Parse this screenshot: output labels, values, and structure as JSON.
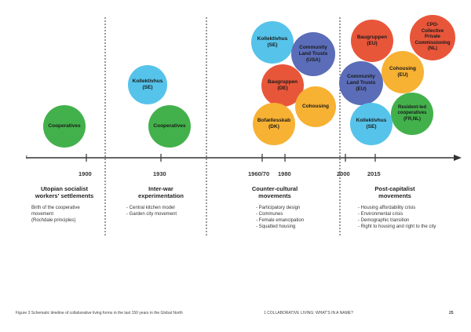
{
  "start_label": "t",
  "axis": {
    "years": [
      "1900",
      "1930",
      "1960/70",
      "1980",
      "2000",
      "2015"
    ]
  },
  "bubbles": {
    "cooperatives_1900": "Cooperatives",
    "kollektivhus_1930": "Kollektivhus\n(SE)",
    "cooperatives_1930": "Cooperatives",
    "kollektivhus_se": "Kollektivhus\n(SE)",
    "clt_usa": "Community\nLand Trusts\n(USA)",
    "baugruppen_de": "Baugruppen\n(DE)",
    "cohousing_1980": "Cohousing",
    "bofaellesskab": "Bofællesskab\n(DK)",
    "baugruppen_eu": "Baugruppen\n(EU)",
    "cpo": "CPO-\nCollective\nPrivate\nCommissioning\n(NL)",
    "clt_eu": "Community\nLand Trusts\n(EU)",
    "cohousing_eu": "Cohousing\n(EU)",
    "resident_led": "Resident-led\ncooperatives\n(FR,NL)",
    "kollektivhus_2015": "Kollektivhus\n(SE)"
  },
  "periods": [
    {
      "title": "Utopian socialist\nworkers' settlements",
      "items": [
        "Birth of the cooperative\nmovement\n(Rochdale principles)"
      ]
    },
    {
      "title": "Inter-war\nexperimentation",
      "items": [
        "- Central kitchen model",
        "- Garden city movement"
      ]
    },
    {
      "title": "Counter-cultural\nmovements",
      "items": [
        "- Participatory design",
        "- Communes",
        "- Female emancipation",
        "- Squatted housing"
      ]
    },
    {
      "title": "Post-capitalist\nmovements",
      "items": [
        "- Housing affordability crisis",
        "- Environmental crisis",
        "- Demographic transition",
        "- Right to housing and right to the city"
      ]
    }
  ],
  "footer": {
    "caption": "Figure 3  Schematic timeline of collaborative living forms in the last 150 years in the Global North",
    "chapter": "1 COLLABORATIVE LIVING: WHAT'S IN A NAME?",
    "page": "25"
  },
  "colors": {
    "green": "#43b14b",
    "blue": "#56c3ea",
    "purple": "#5b6db8",
    "red": "#e8563a",
    "orange": "#f7b133"
  }
}
